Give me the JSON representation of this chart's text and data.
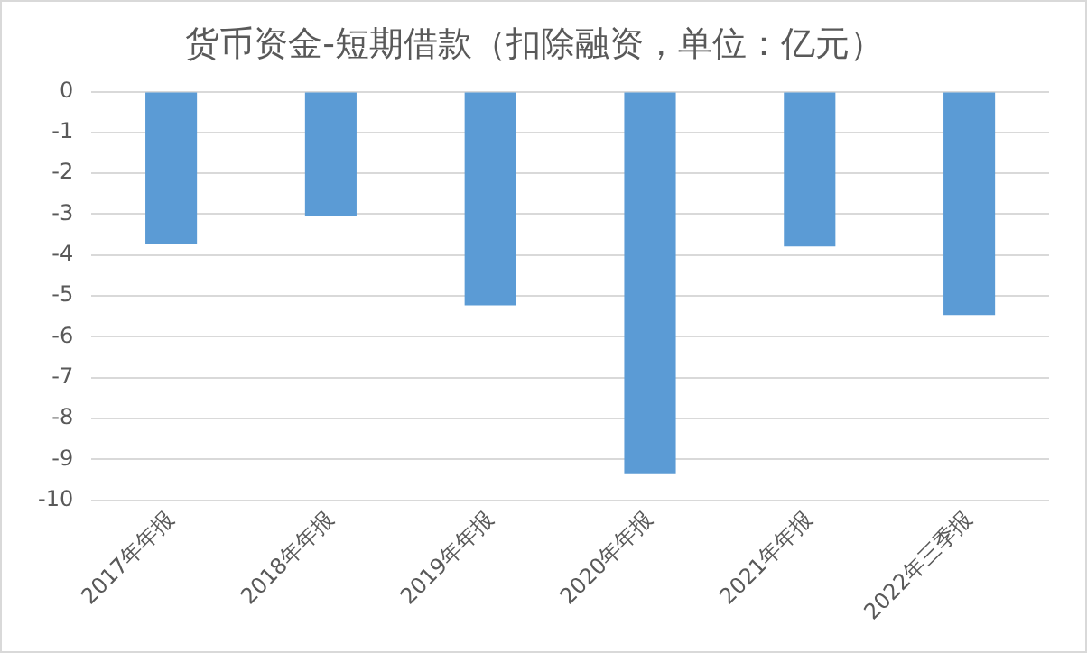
{
  "chart_data": {
    "type": "bar",
    "title": "货币资金-短期借款（扣除融资，单位：亿元）",
    "categories": [
      "2017年年报",
      "2018年年报",
      "2019年年报",
      "2020年年报",
      "2021年年报",
      "2022年三季报"
    ],
    "values": [
      -3.74,
      -3.04,
      -5.23,
      -9.34,
      -3.79,
      -5.47
    ],
    "color": "#5b9bd5",
    "ylim": [
      -10,
      0
    ],
    "yticks": [
      0,
      -1,
      -2,
      -3,
      -4,
      -5,
      -6,
      -7,
      -8,
      -9,
      -10
    ],
    "grid": "y"
  }
}
